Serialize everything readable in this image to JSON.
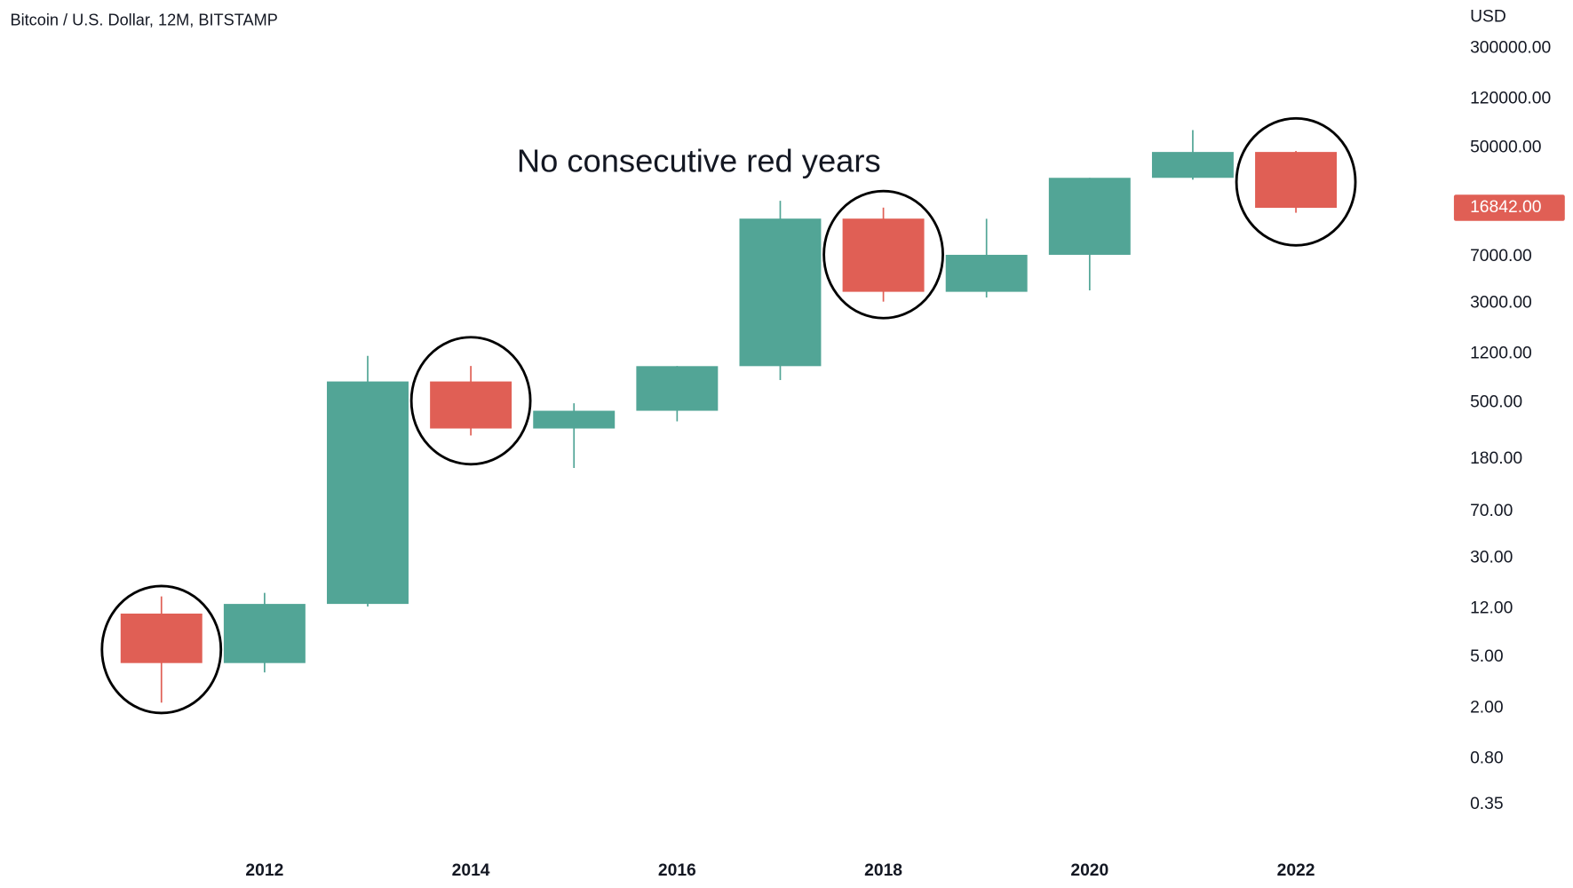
{
  "chart_data": {
    "type": "candlestick",
    "title": "Bitcoin / U.S. Dollar, 12M, BITSTAMP",
    "y_axis_label": "USD",
    "annotation": "No consecutive red years",
    "categories": [
      null,
      "2012",
      null,
      "2014",
      null,
      "2016",
      null,
      "2018",
      null,
      "2020",
      null,
      "2022"
    ],
    "open": [
      11,
      4.5,
      13.1,
      730,
      312,
      430,
      963,
      13850,
      3690,
      7200,
      28950,
      46200
    ],
    "high": [
      15,
      16,
      1160,
      966,
      492,
      966,
      19100,
      16900,
      13800,
      28950,
      68600,
      47000
    ],
    "low": [
      2.2,
      3.8,
      12.5,
      275,
      153,
      355,
      748,
      3090,
      3330,
      3790,
      28000,
      15400
    ],
    "close": [
      4.5,
      13.1,
      730,
      312,
      430,
      963,
      13850,
      3690,
      7200,
      28950,
      46200,
      16842
    ],
    "up_color": "#52a596",
    "down_color": "#e05f55",
    "log_scale": true,
    "ylim": [
      0.16,
      720000
    ],
    "yticks": [
      {
        "value": 300000,
        "label": "300000.00"
      },
      {
        "value": 120000,
        "label": "120000.00"
      },
      {
        "value": 50000,
        "label": "50000.00"
      },
      {
        "value": 7000,
        "label": "7000.00"
      },
      {
        "value": 3000,
        "label": "3000.00"
      },
      {
        "value": 1200,
        "label": "1200.00"
      },
      {
        "value": 500,
        "label": "500.00"
      },
      {
        "value": 180,
        "label": "180.00"
      },
      {
        "value": 70,
        "label": "70.00"
      },
      {
        "value": 30,
        "label": "30.00"
      },
      {
        "value": 12,
        "label": "12.00"
      },
      {
        "value": 5,
        "label": "5.00"
      },
      {
        "value": 2,
        "label": "2.00"
      },
      {
        "value": 0.8,
        "label": "0.80"
      },
      {
        "value": 0.35,
        "label": "0.35"
      }
    ],
    "price_tag": {
      "value": 16842,
      "label": "16842.00"
    }
  }
}
